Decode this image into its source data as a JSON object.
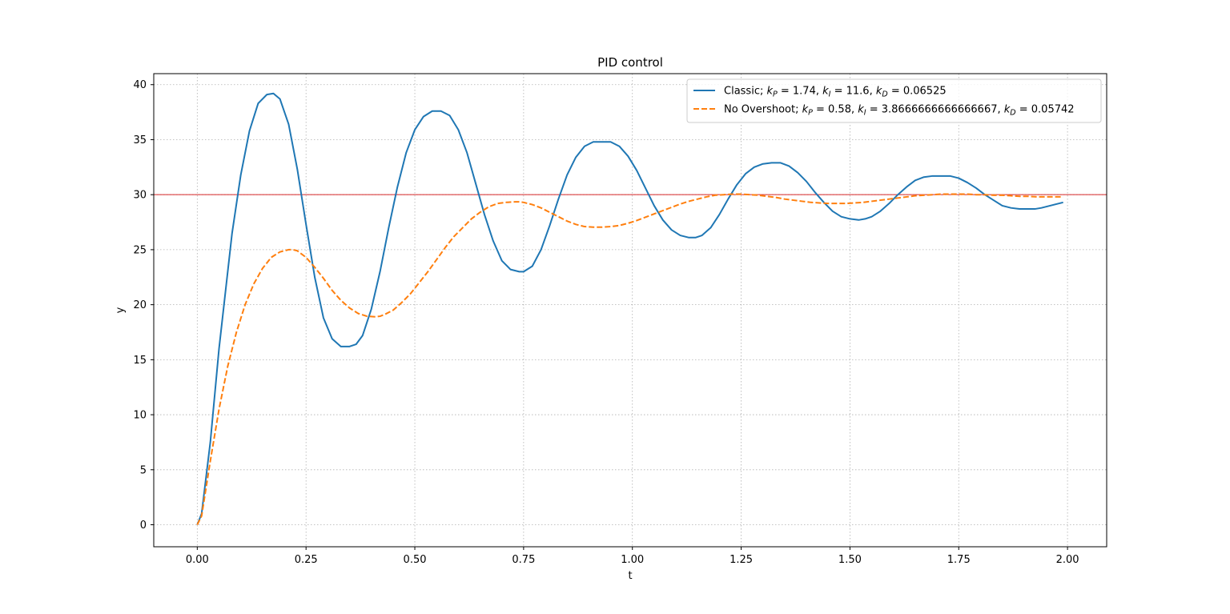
{
  "chart_data": {
    "type": "line",
    "title": "PID control",
    "xlabel": "t",
    "ylabel": "y",
    "xlim": [
      -0.1,
      2.09
    ],
    "ylim": [
      -2,
      41
    ],
    "xticks": [
      0.0,
      0.25,
      0.5,
      0.75,
      1.0,
      1.25,
      1.5,
      1.75,
      2.0
    ],
    "xtick_labels": [
      "0.00",
      "0.25",
      "0.50",
      "0.75",
      "1.00",
      "1.25",
      "1.50",
      "1.75",
      "2.00"
    ],
    "yticks": [
      0,
      5,
      10,
      15,
      20,
      25,
      30,
      35,
      40
    ],
    "ytick_labels": [
      "0",
      "5",
      "10",
      "15",
      "20",
      "25",
      "30",
      "35",
      "40"
    ],
    "grid": true,
    "legend_position": "upper-right",
    "reference_line": {
      "y": 30,
      "color": "#d62728"
    },
    "series": [
      {
        "name": "Classic; k_P = 1.74, k_I = 11.6, k_D = 0.06525",
        "legend_parts": [
          "Classic; ",
          "k",
          "P",
          " = 1.74, ",
          "k",
          "I",
          " = 11.6, ",
          "k",
          "D",
          " = 0.06525"
        ],
        "color": "#1f77b4",
        "style": "solid",
        "x": [
          0.0,
          0.01,
          0.03,
          0.05,
          0.08,
          0.1,
          0.12,
          0.14,
          0.16,
          0.175,
          0.19,
          0.21,
          0.23,
          0.25,
          0.27,
          0.29,
          0.31,
          0.33,
          0.35,
          0.365,
          0.38,
          0.4,
          0.42,
          0.44,
          0.46,
          0.48,
          0.5,
          0.52,
          0.54,
          0.56,
          0.58,
          0.6,
          0.62,
          0.64,
          0.66,
          0.68,
          0.7,
          0.72,
          0.74,
          0.75,
          0.77,
          0.79,
          0.81,
          0.83,
          0.85,
          0.87,
          0.89,
          0.91,
          0.93,
          0.95,
          0.97,
          0.99,
          1.01,
          1.03,
          1.05,
          1.07,
          1.09,
          1.11,
          1.13,
          1.145,
          1.16,
          1.18,
          1.2,
          1.22,
          1.24,
          1.26,
          1.28,
          1.3,
          1.32,
          1.34,
          1.36,
          1.38,
          1.4,
          1.42,
          1.44,
          1.46,
          1.48,
          1.5,
          1.52,
          1.535,
          1.55,
          1.57,
          1.59,
          1.61,
          1.63,
          1.65,
          1.67,
          1.69,
          1.71,
          1.73,
          1.75,
          1.77,
          1.79,
          1.81,
          1.83,
          1.85,
          1.87,
          1.89,
          1.91,
          1.925,
          1.94,
          1.96,
          1.98,
          1.99
        ],
        "y": [
          0.0,
          1.0,
          7.5,
          16.0,
          26.5,
          31.8,
          35.8,
          38.3,
          39.1,
          39.2,
          38.7,
          36.4,
          32.3,
          27.3,
          22.5,
          18.8,
          16.9,
          16.2,
          16.2,
          16.4,
          17.2,
          19.6,
          23.0,
          27.0,
          30.7,
          33.8,
          35.9,
          37.1,
          37.6,
          37.6,
          37.2,
          35.9,
          33.8,
          31.0,
          28.2,
          25.8,
          24.0,
          23.2,
          23.0,
          23.0,
          23.5,
          25.0,
          27.2,
          29.6,
          31.8,
          33.4,
          34.4,
          34.8,
          34.8,
          34.8,
          34.4,
          33.5,
          32.2,
          30.6,
          29.0,
          27.7,
          26.8,
          26.3,
          26.1,
          26.1,
          26.3,
          27.0,
          28.2,
          29.6,
          30.9,
          31.9,
          32.5,
          32.8,
          32.9,
          32.9,
          32.6,
          32.0,
          31.2,
          30.2,
          29.3,
          28.5,
          28.0,
          27.8,
          27.7,
          27.8,
          28.0,
          28.5,
          29.2,
          30.0,
          30.7,
          31.3,
          31.6,
          31.7,
          31.7,
          31.7,
          31.5,
          31.1,
          30.6,
          30.0,
          29.5,
          29.0,
          28.8,
          28.7,
          28.7,
          28.7,
          28.8,
          29.0,
          29.2,
          29.3
        ]
      },
      {
        "name": "No Overshoot; k_P = 0.58, k_I = 3.8666666666666667, k_D = 0.05742",
        "legend_parts": [
          "No Overshoot; ",
          "k",
          "P",
          " = 0.58, ",
          "k",
          "I",
          " = 3.8666666666666667, ",
          "k",
          "D",
          " = 0.05742"
        ],
        "color": "#ff7f0e",
        "style": "dashed",
        "x": [
          0.0,
          0.01,
          0.03,
          0.05,
          0.07,
          0.09,
          0.11,
          0.13,
          0.15,
          0.17,
          0.19,
          0.21,
          0.22,
          0.23,
          0.25,
          0.27,
          0.29,
          0.31,
          0.33,
          0.35,
          0.37,
          0.39,
          0.41,
          0.42,
          0.43,
          0.45,
          0.47,
          0.49,
          0.51,
          0.53,
          0.55,
          0.57,
          0.59,
          0.61,
          0.63,
          0.65,
          0.67,
          0.69,
          0.71,
          0.73,
          0.74,
          0.75,
          0.77,
          0.79,
          0.81,
          0.83,
          0.85,
          0.87,
          0.89,
          0.91,
          0.93,
          0.95,
          0.97,
          0.99,
          1.01,
          1.03,
          1.05,
          1.07,
          1.09,
          1.11,
          1.13,
          1.15,
          1.17,
          1.19,
          1.21,
          1.23,
          1.25,
          1.27,
          1.29,
          1.31,
          1.33,
          1.35,
          1.37,
          1.39,
          1.41,
          1.43,
          1.45,
          1.47,
          1.49,
          1.51,
          1.53,
          1.55,
          1.57,
          1.59,
          1.61,
          1.63,
          1.65,
          1.67,
          1.69,
          1.71,
          1.73,
          1.75,
          1.77,
          1.79,
          1.81,
          1.83,
          1.85,
          1.87,
          1.89,
          1.91,
          1.93,
          1.95,
          1.97,
          1.99
        ],
        "y": [
          0.0,
          0.8,
          5.8,
          10.5,
          14.4,
          17.5,
          20.0,
          21.9,
          23.3,
          24.3,
          24.8,
          25.0,
          25.0,
          24.9,
          24.3,
          23.4,
          22.4,
          21.3,
          20.4,
          19.7,
          19.2,
          18.95,
          18.9,
          18.95,
          19.1,
          19.5,
          20.2,
          21.0,
          22.0,
          23.0,
          24.1,
          25.2,
          26.2,
          27.0,
          27.8,
          28.4,
          28.9,
          29.2,
          29.3,
          29.35,
          29.35,
          29.3,
          29.1,
          28.8,
          28.4,
          28.0,
          27.6,
          27.3,
          27.1,
          27.05,
          27.05,
          27.1,
          27.2,
          27.4,
          27.65,
          27.95,
          28.25,
          28.55,
          28.85,
          29.15,
          29.4,
          29.6,
          29.8,
          29.95,
          30.0,
          30.05,
          30.05,
          30.0,
          29.95,
          29.85,
          29.75,
          29.6,
          29.5,
          29.4,
          29.3,
          29.25,
          29.2,
          29.2,
          29.2,
          29.25,
          29.3,
          29.4,
          29.5,
          29.6,
          29.7,
          29.8,
          29.9,
          29.95,
          30.0,
          30.05,
          30.05,
          30.05,
          30.05,
          30.0,
          30.0,
          29.95,
          29.95,
          29.9,
          29.85,
          29.85,
          29.8,
          29.8,
          29.8,
          29.8
        ]
      }
    ]
  }
}
